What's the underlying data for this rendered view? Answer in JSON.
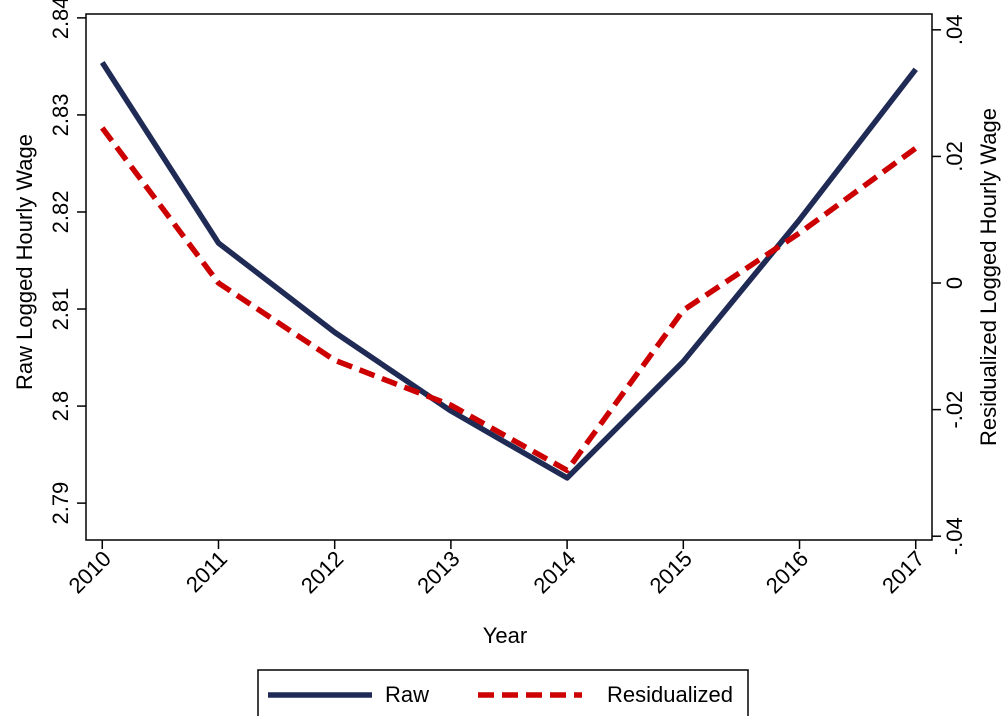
{
  "chart_data": {
    "type": "line",
    "x_label": "Year",
    "y_label": "Raw Logged Hourly Wage",
    "y2_label": "Residualized Logged Hourly Wage",
    "x": [
      2010,
      2011,
      2012,
      2013,
      2014,
      2015,
      2016,
      2017
    ],
    "series": [
      {
        "name": "Raw",
        "color": "#1f2a55",
        "dash": false,
        "values": [
          2.8354,
          2.8168,
          2.8076,
          2.7995,
          2.7926,
          2.8046,
          2.8192,
          2.8347
        ]
      },
      {
        "name": "Residualized",
        "color": "#cc0000",
        "dash": true,
        "axis": "y2",
        "values": [
          0.0245,
          0.0,
          -0.0122,
          -0.0193,
          -0.0296,
          -0.0043,
          0.0079,
          0.0213
        ]
      }
    ],
    "xlim": [
      2009.86,
      2017.14
    ],
    "xticks": [
      2010,
      2011,
      2012,
      2013,
      2014,
      2015,
      2016,
      2017
    ],
    "ylim": [
      2.7862,
      2.8404
    ],
    "yticks": [
      2.79,
      2.8,
      2.81,
      2.82,
      2.83,
      2.84
    ],
    "y2lim": [
      -0.0406,
      0.0425
    ],
    "y2ticks": [
      {
        "value": -0.04,
        "label": "-.04"
      },
      {
        "value": -0.02,
        "label": "-.02"
      },
      0,
      {
        "value": 0.02,
        "label": ".02"
      },
      {
        "value": 0.04,
        "label": ".04"
      }
    ],
    "grid": false,
    "legend": "bottom"
  }
}
